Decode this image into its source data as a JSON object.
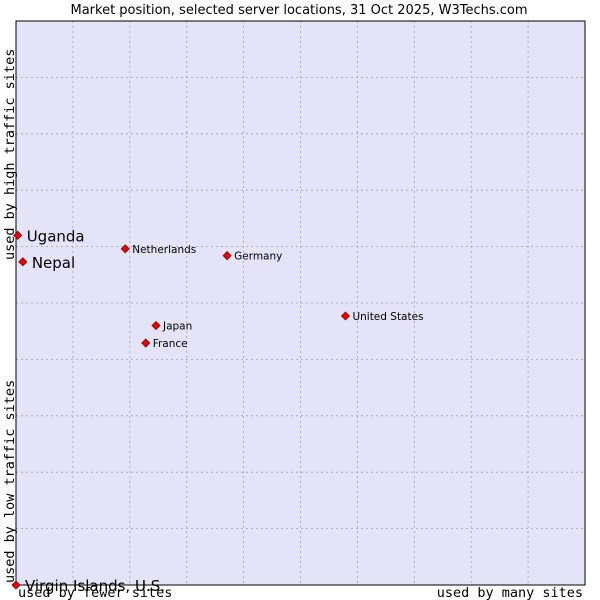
{
  "chart_data": {
    "type": "scatter",
    "title": "Market position, selected server locations, 31 Oct 2025, W3Techs.com",
    "xlabel_left": "used by fewer sites",
    "xlabel_right": "used by many sites",
    "ylabel_bottom": "used by low traffic sites",
    "ylabel_top": "used by high traffic sites",
    "xlim": [
      0,
      100
    ],
    "ylim": [
      0,
      100
    ],
    "grid": true,
    "colors": {
      "plot_background": "#e4e4f8",
      "grid": "#a0a0b4",
      "border": "#000000",
      "marker": "#ee0000",
      "marker_edge": "#880000"
    },
    "points": [
      {
        "name": "Uganda",
        "x": 0.3,
        "y": 62.0,
        "label_style": "large"
      },
      {
        "name": "Nepal",
        "x": 1.2,
        "y": 57.3,
        "label_style": "large"
      },
      {
        "name": "Netherlands",
        "x": 19.2,
        "y": 59.6,
        "label_style": "small"
      },
      {
        "name": "Germany",
        "x": 37.1,
        "y": 58.4,
        "label_style": "small"
      },
      {
        "name": "United States",
        "x": 57.9,
        "y": 47.7,
        "label_style": "small"
      },
      {
        "name": "Japan",
        "x": 24.6,
        "y": 46.0,
        "label_style": "small"
      },
      {
        "name": "France",
        "x": 22.8,
        "y": 42.9,
        "label_style": "small"
      },
      {
        "name": "Virgin Islands, U.S.",
        "x": 0.0,
        "y": 0.0,
        "label_style": "large"
      }
    ]
  }
}
